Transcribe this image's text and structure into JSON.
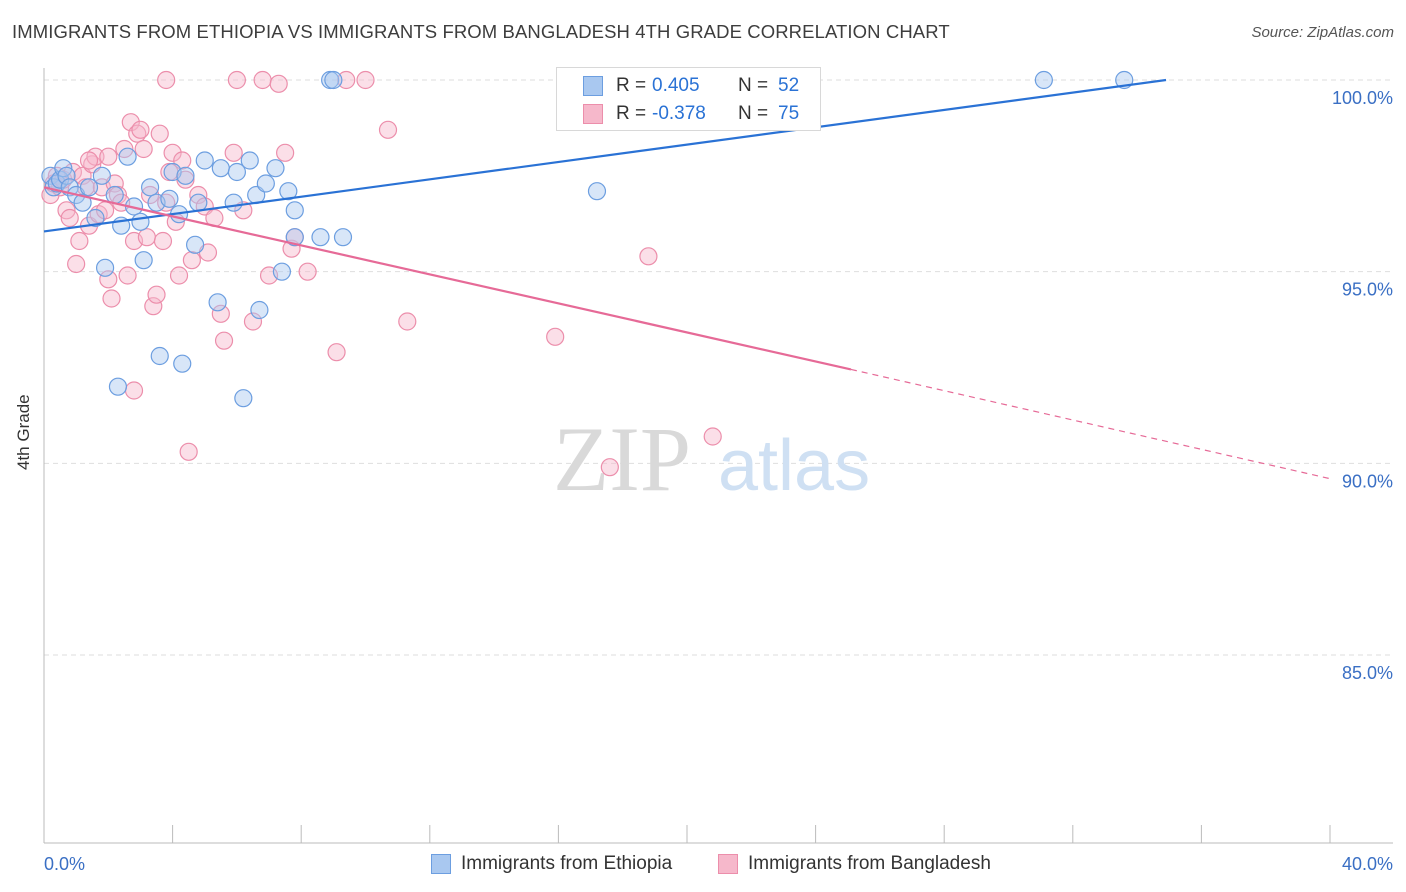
{
  "title": "IMMIGRANTS FROM ETHIOPIA VS IMMIGRANTS FROM BANGLADESH 4TH GRADE CORRELATION CHART",
  "source": "Source: ZipAtlas.com",
  "watermark": {
    "zip": "ZIP",
    "atlas": "atlas"
  },
  "colors": {
    "blue_fill": "#a9c8f0",
    "blue_stroke": "#6c9ee0",
    "blue_line": "#2a72d5",
    "pink_fill": "#f6b8cb",
    "pink_stroke": "#ec8eab",
    "pink_line": "#e66a97",
    "axis_text": "#3a6fc4",
    "grid": "#dedede"
  },
  "legend": {
    "ethiopia": {
      "r_label": "R =",
      "r_value": "0.405",
      "n_label": "N =",
      "n_value": "52"
    },
    "bangladesh": {
      "r_label": "R =",
      "r_value": "-0.378",
      "n_label": "N =",
      "n_value": "75"
    }
  },
  "chart_data": {
    "type": "scatter",
    "title": "IMMIGRANTS FROM ETHIOPIA VS IMMIGRANTS FROM BANGLADESH 4TH GRADE CORRELATION CHART",
    "xlabel": "",
    "ylabel": "4th Grade",
    "xlim": [
      0,
      40
    ],
    "ylim": [
      80.5,
      100.5
    ],
    "x_tick_labels": [
      "0.0%",
      "40.0%"
    ],
    "y_ticks": [
      {
        "value": 100,
        "label": "100.0%"
      },
      {
        "value": 95,
        "label": "95.0%"
      },
      {
        "value": 90,
        "label": "90.0%"
      },
      {
        "value": 85,
        "label": "85.0%"
      }
    ],
    "series": [
      {
        "name": "Immigrants from Ethiopia",
        "color": "blue",
        "trend": {
          "x0": 0,
          "y0": 96.05,
          "x1": 34.9,
          "y1": 100.0,
          "dashed_to": null
        },
        "points": [
          [
            0.2,
            97.5
          ],
          [
            0.3,
            97.2
          ],
          [
            0.4,
            97.3
          ],
          [
            0.5,
            97.4
          ],
          [
            0.6,
            97.7
          ],
          [
            0.7,
            97.5
          ],
          [
            0.8,
            97.2
          ],
          [
            1.0,
            97.0
          ],
          [
            1.2,
            96.8
          ],
          [
            1.4,
            97.2
          ],
          [
            1.6,
            96.4
          ],
          [
            1.8,
            97.5
          ],
          [
            1.9,
            95.1
          ],
          [
            2.2,
            97.0
          ],
          [
            2.4,
            96.2
          ],
          [
            2.6,
            98.0
          ],
          [
            2.8,
            96.7
          ],
          [
            3.0,
            96.3
          ],
          [
            3.1,
            95.3
          ],
          [
            3.3,
            97.2
          ],
          [
            3.5,
            96.8
          ],
          [
            3.6,
            92.8
          ],
          [
            3.9,
            96.9
          ],
          [
            4.0,
            97.6
          ],
          [
            4.2,
            96.5
          ],
          [
            4.3,
            92.6
          ],
          [
            4.4,
            97.5
          ],
          [
            4.7,
            95.7
          ],
          [
            4.8,
            96.8
          ],
          [
            5.0,
            97.9
          ],
          [
            5.4,
            94.2
          ],
          [
            5.5,
            97.7
          ],
          [
            5.9,
            96.8
          ],
          [
            6.0,
            97.6
          ],
          [
            6.2,
            91.7
          ],
          [
            6.4,
            97.9
          ],
          [
            6.6,
            97.0
          ],
          [
            6.7,
            94.0
          ],
          [
            6.9,
            97.3
          ],
          [
            7.2,
            97.7
          ],
          [
            7.4,
            95.0
          ],
          [
            7.6,
            97.1
          ],
          [
            7.8,
            96.6
          ],
          [
            7.8,
            95.9
          ],
          [
            8.6,
            95.9
          ],
          [
            8.9,
            100.0
          ],
          [
            9.0,
            100.0
          ],
          [
            9.3,
            95.9
          ],
          [
            17.2,
            97.1
          ],
          [
            31.1,
            100.0
          ],
          [
            33.6,
            100.0
          ],
          [
            2.3,
            92.0
          ]
        ]
      },
      {
        "name": "Immigrants from Bangladesh",
        "color": "pink",
        "trend": {
          "x0": 0,
          "y0": 97.2,
          "x1": 25.1,
          "y1": 92.45,
          "dashed_to": {
            "x": 40,
            "y": 89.6
          }
        },
        "points": [
          [
            0.2,
            97.0
          ],
          [
            0.3,
            97.3
          ],
          [
            0.4,
            97.5
          ],
          [
            0.5,
            97.2
          ],
          [
            0.6,
            97.4
          ],
          [
            0.7,
            96.6
          ],
          [
            0.8,
            96.4
          ],
          [
            0.9,
            97.6
          ],
          [
            1.0,
            95.2
          ],
          [
            1.1,
            95.8
          ],
          [
            1.2,
            97.5
          ],
          [
            1.3,
            97.2
          ],
          [
            1.4,
            96.2
          ],
          [
            1.5,
            97.8
          ],
          [
            1.6,
            98.0
          ],
          [
            1.7,
            96.5
          ],
          [
            1.8,
            97.2
          ],
          [
            1.9,
            96.6
          ],
          [
            2.0,
            98.0
          ],
          [
            2.1,
            94.3
          ],
          [
            2.2,
            97.3
          ],
          [
            2.3,
            97.0
          ],
          [
            2.4,
            96.8
          ],
          [
            2.5,
            98.2
          ],
          [
            2.6,
            94.9
          ],
          [
            2.7,
            98.9
          ],
          [
            2.8,
            95.8
          ],
          [
            2.9,
            98.6
          ],
          [
            3.0,
            98.7
          ],
          [
            3.1,
            98.2
          ],
          [
            3.2,
            95.9
          ],
          [
            3.3,
            97.0
          ],
          [
            3.4,
            94.1
          ],
          [
            3.5,
            94.4
          ],
          [
            3.6,
            98.6
          ],
          [
            3.8,
            100.0
          ],
          [
            3.8,
            96.8
          ],
          [
            3.9,
            97.6
          ],
          [
            4.0,
            98.1
          ],
          [
            4.1,
            96.3
          ],
          [
            4.2,
            94.9
          ],
          [
            4.3,
            97.9
          ],
          [
            4.4,
            97.4
          ],
          [
            4.5,
            90.3
          ],
          [
            4.6,
            95.3
          ],
          [
            4.8,
            97.0
          ],
          [
            5.0,
            96.7
          ],
          [
            5.1,
            95.5
          ],
          [
            5.3,
            96.4
          ],
          [
            5.5,
            93.9
          ],
          [
            5.6,
            93.2
          ],
          [
            5.9,
            98.1
          ],
          [
            6.0,
            100.0
          ],
          [
            6.2,
            96.6
          ],
          [
            6.5,
            93.7
          ],
          [
            6.8,
            100.0
          ],
          [
            7.0,
            94.9
          ],
          [
            7.3,
            99.9
          ],
          [
            7.5,
            98.1
          ],
          [
            7.7,
            95.6
          ],
          [
            7.8,
            95.9
          ],
          [
            8.2,
            95.0
          ],
          [
            9.1,
            92.9
          ],
          [
            9.4,
            100.0
          ],
          [
            10.0,
            100.0
          ],
          [
            10.7,
            98.7
          ],
          [
            11.3,
            93.7
          ],
          [
            15.9,
            93.3
          ],
          [
            17.6,
            89.9
          ],
          [
            18.8,
            95.4
          ],
          [
            20.8,
            90.7
          ],
          [
            1.4,
            97.9
          ],
          [
            2.0,
            94.8
          ],
          [
            3.7,
            95.8
          ],
          [
            2.8,
            91.9
          ]
        ]
      }
    ]
  },
  "bottom_legend": {
    "ethiopia": "Immigrants from Ethiopia",
    "bangladesh": "Immigrants from Bangladesh"
  }
}
